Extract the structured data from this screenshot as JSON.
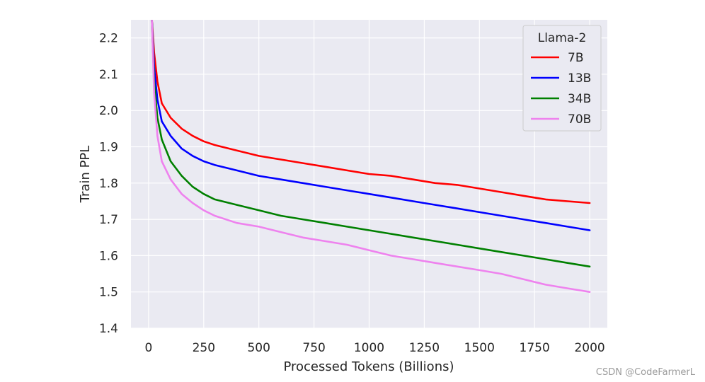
{
  "chart_data": {
    "type": "line",
    "title": "",
    "xlabel": "Processed Tokens (Billions)",
    "ylabel": "Train PPL",
    "xlim": [
      -80,
      2080
    ],
    "ylim": [
      1.4,
      2.25
    ],
    "xticks": [
      0,
      250,
      500,
      750,
      1000,
      1250,
      1500,
      1750,
      2000
    ],
    "yticks": [
      1.4,
      1.5,
      1.6,
      1.7,
      1.8,
      1.9,
      2.0,
      2.1,
      2.2
    ],
    "xtick_labels": [
      "0",
      "250",
      "500",
      "750",
      "1000",
      "1250",
      "1500",
      "1750",
      "2000"
    ],
    "ytick_labels": [
      "1.4",
      "1.5",
      "1.6",
      "1.7",
      "1.8",
      "1.9",
      "2.0",
      "2.1",
      "2.2"
    ],
    "grid": true,
    "legend": {
      "title": "Llama-2",
      "placement": "top-right"
    },
    "series": [
      {
        "name": "7B",
        "color": "#ff0000",
        "x": [
          15,
          25,
          40,
          60,
          100,
          150,
          200,
          250,
          300,
          400,
          500,
          600,
          700,
          800,
          900,
          1000,
          1100,
          1200,
          1300,
          1400,
          1500,
          1600,
          1700,
          1800,
          1900,
          2000
        ],
        "y": [
          2.25,
          2.16,
          2.08,
          2.02,
          1.98,
          1.95,
          1.93,
          1.915,
          1.905,
          1.89,
          1.875,
          1.865,
          1.855,
          1.845,
          1.835,
          1.825,
          1.82,
          1.81,
          1.8,
          1.795,
          1.785,
          1.775,
          1.765,
          1.755,
          1.75,
          1.745
        ]
      },
      {
        "name": "13B",
        "color": "#0000ff",
        "x": [
          15,
          25,
          40,
          60,
          100,
          150,
          200,
          250,
          300,
          400,
          500,
          600,
          700,
          800,
          900,
          1000,
          1100,
          1200,
          1300,
          1400,
          1500,
          1600,
          1700,
          1800,
          1900,
          2000
        ],
        "y": [
          2.25,
          2.12,
          2.03,
          1.97,
          1.93,
          1.895,
          1.875,
          1.86,
          1.85,
          1.835,
          1.82,
          1.81,
          1.8,
          1.79,
          1.78,
          1.77,
          1.76,
          1.75,
          1.74,
          1.73,
          1.72,
          1.71,
          1.7,
          1.69,
          1.68,
          1.67
        ]
      },
      {
        "name": "34B",
        "color": "#008000",
        "x": [
          15,
          25,
          40,
          60,
          100,
          150,
          200,
          250,
          300,
          400,
          500,
          600,
          700,
          800,
          900,
          1000,
          1100,
          1200,
          1300,
          1400,
          1500,
          1600,
          1700,
          1800,
          1900,
          2000
        ],
        "y": [
          2.25,
          2.08,
          1.98,
          1.92,
          1.86,
          1.82,
          1.79,
          1.77,
          1.755,
          1.74,
          1.725,
          1.71,
          1.7,
          1.69,
          1.68,
          1.67,
          1.66,
          1.65,
          1.64,
          1.63,
          1.62,
          1.61,
          1.6,
          1.59,
          1.58,
          1.57
        ]
      },
      {
        "name": "70B",
        "color": "#ee82ee",
        "x": [
          15,
          25,
          40,
          60,
          100,
          150,
          200,
          250,
          300,
          400,
          500,
          600,
          700,
          800,
          900,
          1000,
          1100,
          1200,
          1300,
          1400,
          1500,
          1600,
          1700,
          1800,
          1900,
          2000
        ],
        "y": [
          2.25,
          2.05,
          1.93,
          1.86,
          1.81,
          1.77,
          1.745,
          1.725,
          1.71,
          1.69,
          1.68,
          1.665,
          1.65,
          1.64,
          1.63,
          1.615,
          1.6,
          1.59,
          1.58,
          1.57,
          1.56,
          1.55,
          1.535,
          1.52,
          1.51,
          1.5
        ]
      }
    ]
  },
  "watermark": "CSDN @CodeFarmerL"
}
